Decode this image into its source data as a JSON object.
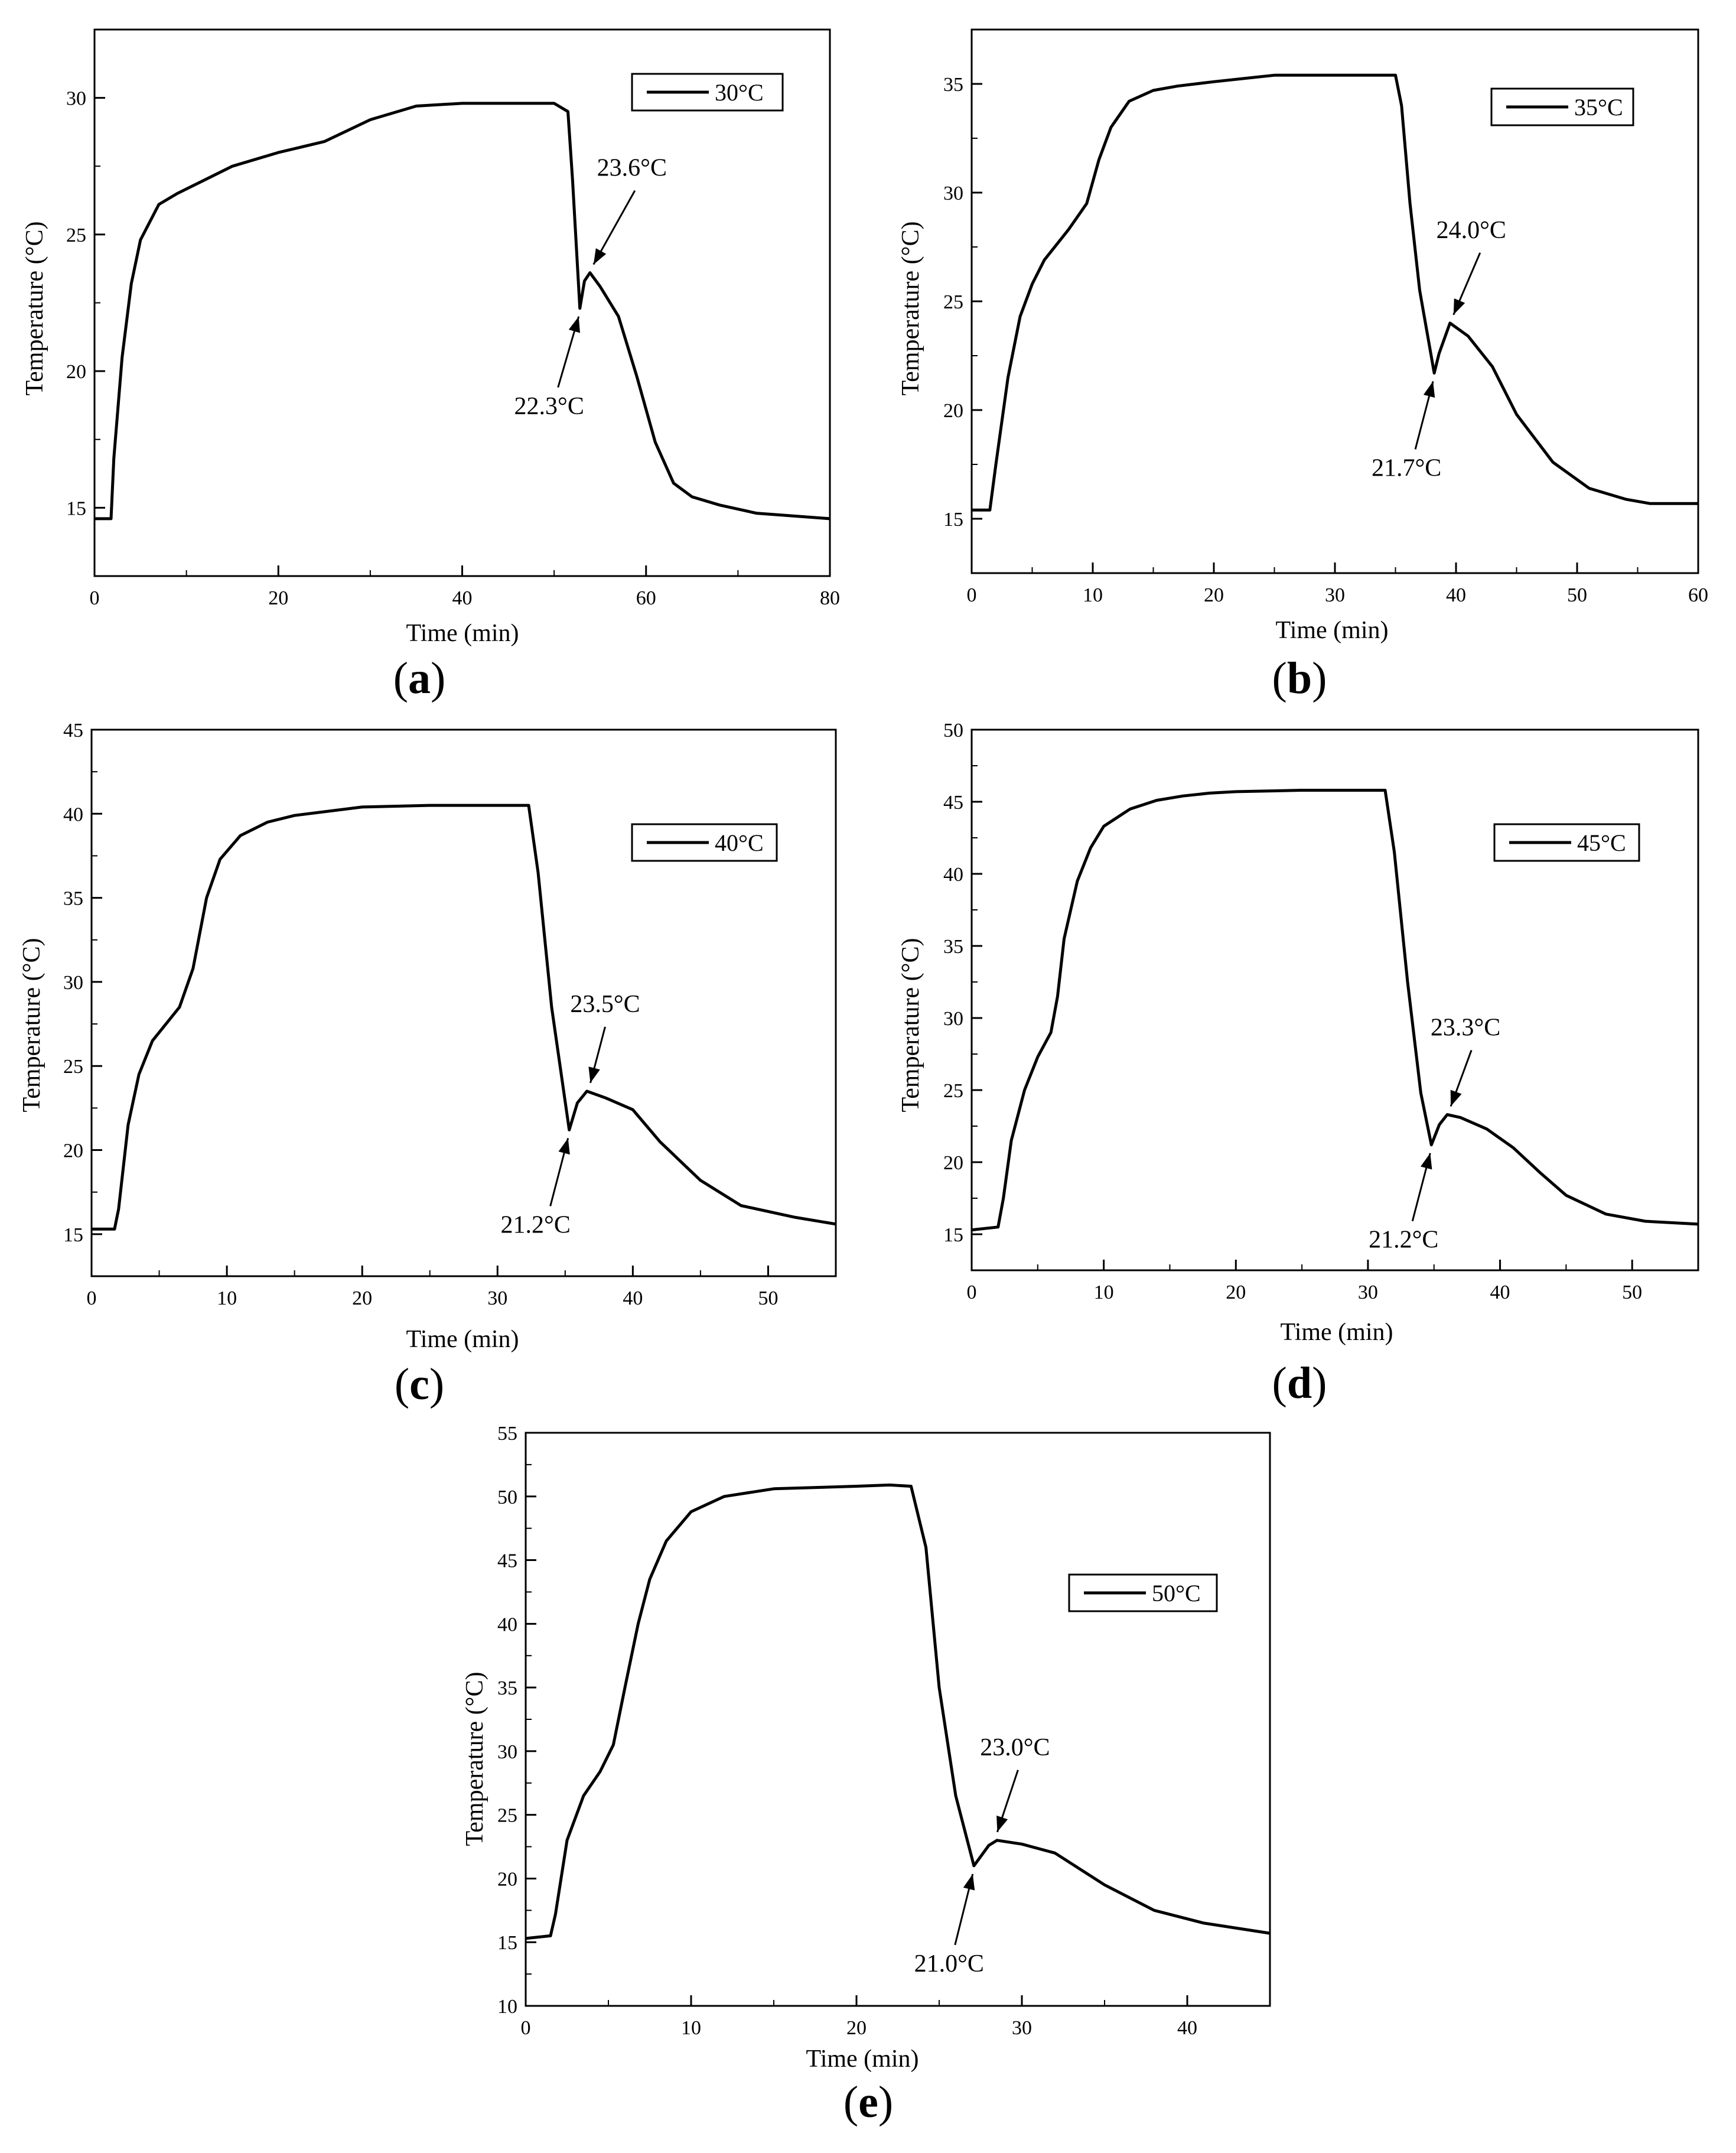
{
  "chart_data": [
    {
      "type": "line",
      "panel_label": "a",
      "xlabel": "Time (min)",
      "ylabel": "Temperature (°C)",
      "xlim": [
        0,
        80
      ],
      "ylim": [
        12.5,
        32.5
      ],
      "xticks": [
        0,
        20,
        40,
        60,
        80
      ],
      "yticks": [
        15,
        20,
        25,
        30
      ],
      "legend": "30°C",
      "legend_position": "top-right",
      "grid": false,
      "x": [
        0,
        1.8,
        2.1,
        3,
        4,
        5,
        7,
        9,
        12,
        15,
        20,
        25,
        30,
        35,
        40,
        45,
        50,
        51.5,
        52,
        52.8,
        53.3,
        53.9,
        55,
        57,
        59,
        61,
        63,
        65,
        68,
        72,
        76,
        80
      ],
      "y": [
        14.6,
        14.6,
        16.8,
        20.5,
        23.2,
        24.8,
        26.1,
        26.5,
        27.0,
        27.5,
        28.0,
        28.4,
        29.2,
        29.7,
        29.8,
        29.8,
        29.8,
        29.5,
        27.0,
        22.3,
        23.3,
        23.6,
        23.1,
        22.0,
        19.8,
        17.4,
        15.9,
        15.4,
        15.1,
        14.8,
        14.7,
        14.6
      ],
      "annotations": [
        {
          "text": "23.6°C",
          "x": 53.9,
          "y": 23.6,
          "dir": "up"
        },
        {
          "text": "22.3°C",
          "x": 52.8,
          "y": 22.3,
          "dir": "down"
        }
      ]
    },
    {
      "type": "line",
      "panel_label": "b",
      "xlabel": "Time (min)",
      "ylabel": "Temperature (°C)",
      "xlim": [
        0,
        60
      ],
      "ylim": [
        12.5,
        37.5
      ],
      "xticks": [
        0,
        10,
        20,
        30,
        40,
        50,
        60
      ],
      "yticks": [
        15,
        20,
        25,
        30,
        35
      ],
      "legend": "35°C",
      "legend_position": "top-right",
      "grid": false,
      "x": [
        0,
        1.5,
        2,
        3,
        4,
        5,
        6,
        7,
        8,
        9.5,
        10.5,
        11.5,
        13,
        15,
        17,
        20,
        25,
        30,
        35,
        35.5,
        36.2,
        37,
        38.2,
        38.6,
        39.5,
        41,
        43,
        45,
        48,
        51,
        54,
        56,
        60
      ],
      "y": [
        15.4,
        15.4,
        17.5,
        21.5,
        24.3,
        25.8,
        26.9,
        27.6,
        28.3,
        29.5,
        31.5,
        33.0,
        34.2,
        34.7,
        34.9,
        35.1,
        35.4,
        35.4,
        35.4,
        34.0,
        29.5,
        25.5,
        21.7,
        22.6,
        24.0,
        23.4,
        22.0,
        19.8,
        17.6,
        16.4,
        15.9,
        15.7,
        15.7
      ],
      "annotations": [
        {
          "text": "24.0°C",
          "x": 39.5,
          "y": 24.0,
          "dir": "up"
        },
        {
          "text": "21.7°C",
          "x": 38.2,
          "y": 21.7,
          "dir": "down"
        }
      ]
    },
    {
      "type": "line",
      "panel_label": "c",
      "xlabel": "Time (min)",
      "ylabel": "Temperature (°C)",
      "xlim": [
        0,
        55
      ],
      "ylim": [
        12.5,
        45
      ],
      "xticks": [
        0,
        10,
        20,
        30,
        40,
        50
      ],
      "yticks": [
        15,
        20,
        25,
        30,
        35,
        40,
        45
      ],
      "legend": "40°C",
      "legend_position": "top-right",
      "grid": false,
      "x": [
        0,
        1.7,
        2,
        2.7,
        3.5,
        4.5,
        5.5,
        6.5,
        7.5,
        8.5,
        9.5,
        11,
        13,
        15,
        20,
        25,
        30,
        32.3,
        33,
        34,
        35.3,
        35.9,
        36.6,
        38,
        40,
        42,
        45,
        48,
        52,
        55
      ],
      "y": [
        15.3,
        15.3,
        16.5,
        21.5,
        24.5,
        26.5,
        27.5,
        28.5,
        30.8,
        35.0,
        37.3,
        38.7,
        39.5,
        39.9,
        40.4,
        40.5,
        40.5,
        40.5,
        36.5,
        28.5,
        21.2,
        22.8,
        23.5,
        23.1,
        22.4,
        20.5,
        18.2,
        16.7,
        16.0,
        15.6
      ],
      "annotations": [
        {
          "text": "23.5°C",
          "x": 36.6,
          "y": 23.5,
          "dir": "up"
        },
        {
          "text": "21.2°C",
          "x": 35.3,
          "y": 21.2,
          "dir": "down"
        }
      ]
    },
    {
      "type": "line",
      "panel_label": "d",
      "xlabel": "Time (min)",
      "ylabel": "Temperature (°C)",
      "xlim": [
        0,
        55
      ],
      "ylim": [
        12.5,
        50
      ],
      "xticks": [
        0,
        10,
        20,
        30,
        40,
        50
      ],
      "yticks": [
        15,
        20,
        25,
        30,
        35,
        40,
        45,
        50
      ],
      "legend": "45°C",
      "legend_position": "top-right",
      "grid": false,
      "x": [
        0,
        2,
        2.4,
        3,
        4,
        5,
        6,
        6.5,
        7,
        8,
        9,
        10,
        12,
        14,
        16,
        18,
        20,
        25,
        31.3,
        32,
        33,
        34,
        34.8,
        35.4,
        36,
        37,
        39,
        41,
        43,
        45,
        48,
        51,
        55
      ],
      "y": [
        15.3,
        15.5,
        17.5,
        21.5,
        25.0,
        27.3,
        29.0,
        31.5,
        35.5,
        39.5,
        41.8,
        43.3,
        44.5,
        45.1,
        45.4,
        45.6,
        45.7,
        45.8,
        45.8,
        41.5,
        32.5,
        24.8,
        21.2,
        22.6,
        23.3,
        23.1,
        22.3,
        21.0,
        19.3,
        17.7,
        16.4,
        15.9,
        15.7
      ],
      "annotations": [
        {
          "text": "23.3°C",
          "x": 36,
          "y": 23.3,
          "dir": "up"
        },
        {
          "text": "21.2°C",
          "x": 34.8,
          "y": 21.2,
          "dir": "down"
        }
      ]
    },
    {
      "type": "line",
      "panel_label": "e",
      "xlabel": "Time (min)",
      "ylabel": "Temperature (°C)",
      "xlim": [
        0,
        45
      ],
      "ylim": [
        10,
        55
      ],
      "xticks": [
        0,
        10,
        20,
        30,
        40
      ],
      "yticks": [
        10,
        15,
        20,
        25,
        30,
        35,
        40,
        45,
        50,
        55
      ],
      "legend": "50°C",
      "legend_position": "top-right",
      "grid": false,
      "x": [
        0,
        1.5,
        1.8,
        2.5,
        3.5,
        4.5,
        5.3,
        6,
        6.8,
        7.5,
        8.5,
        10,
        12,
        15,
        20,
        22,
        23.3,
        24.2,
        25,
        26,
        27.1,
        28,
        28.5,
        30,
        32,
        35,
        38,
        41,
        45
      ],
      "y": [
        15.3,
        15.5,
        17.2,
        23.0,
        26.5,
        28.4,
        30.5,
        35.0,
        40.0,
        43.5,
        46.5,
        48.8,
        50.0,
        50.6,
        50.8,
        50.9,
        50.8,
        46.0,
        35.0,
        26.5,
        21.0,
        22.6,
        23.0,
        22.7,
        22.0,
        19.5,
        17.5,
        16.5,
        15.7
      ],
      "annotations": [
        {
          "text": "23.0°C",
          "x": 28.3,
          "y": 23.0,
          "dir": "up"
        },
        {
          "text": "21.0°C",
          "x": 27.1,
          "y": 21.0,
          "dir": "down"
        }
      ]
    }
  ]
}
